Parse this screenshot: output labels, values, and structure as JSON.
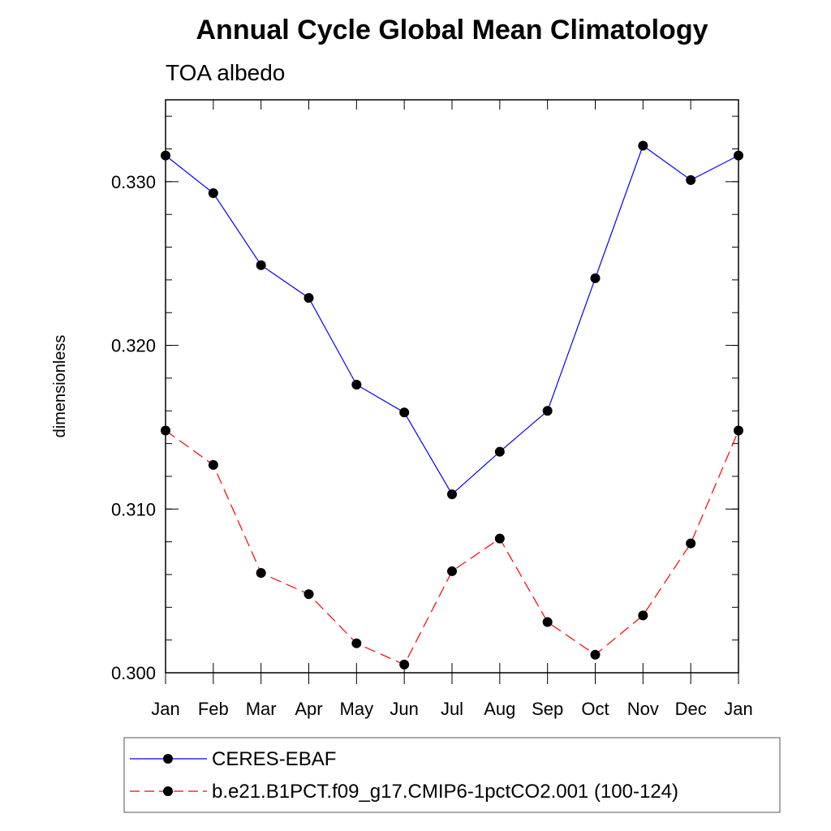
{
  "chart_data": {
    "type": "line",
    "title": "Annual Cycle Global Mean Climatology",
    "subtitle": "TOA albedo",
    "xlabel": "",
    "ylabel": "dimensionless",
    "categories": [
      "Jan",
      "Feb",
      "Mar",
      "Apr",
      "May",
      "Jun",
      "Jul",
      "Aug",
      "Sep",
      "Oct",
      "Nov",
      "Dec",
      "Jan"
    ],
    "ylim": [
      0.3,
      0.335
    ],
    "yticks": [
      0.3,
      0.31,
      0.32,
      0.33
    ],
    "ytick_labels": [
      "0.300",
      "0.310",
      "0.320",
      "0.330"
    ],
    "legend_position": "bottom",
    "series": [
      {
        "name": "CERES-EBAF",
        "color": "#0000ff",
        "style": "solid",
        "values": [
          0.3316,
          0.3293,
          0.3249,
          0.3229,
          0.3176,
          0.3159,
          0.3109,
          0.3135,
          0.316,
          0.3241,
          0.3322,
          0.3301,
          0.3316
        ]
      },
      {
        "name": "b.e21.B1PCT.f09_g17.CMIP6-1pctCO2.001 (100-124)",
        "color": "#ff0000",
        "style": "dashed",
        "values": [
          0.3148,
          0.3127,
          0.3061,
          0.3048,
          0.3018,
          0.3005,
          0.3062,
          0.3082,
          0.3031,
          0.3011,
          0.3035,
          0.3079,
          0.3148
        ]
      }
    ]
  }
}
